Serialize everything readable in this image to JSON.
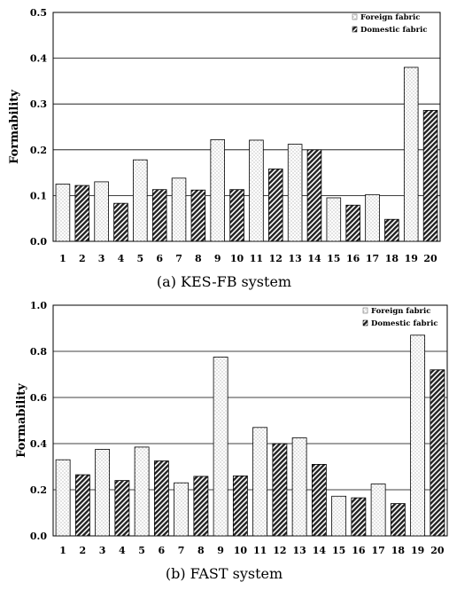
{
  "chart_data": [
    {
      "type": "bar",
      "caption": "(a) KES-FB system",
      "ylabel": "Formability",
      "ylim": [
        0,
        0.5
      ],
      "yticks": [
        "0.0",
        "0.1",
        "0.2",
        "0.3",
        "0.4",
        "0.5"
      ],
      "categories": [
        "1",
        "2",
        "3",
        "4",
        "5",
        "6",
        "7",
        "8",
        "9",
        "10",
        "11",
        "12",
        "13",
        "14",
        "15",
        "16",
        "17",
        "18",
        "19",
        "20"
      ],
      "series": [
        {
          "name": "Foreign fabric",
          "pattern": "dots",
          "values": [
            0.125,
            null,
            0.13,
            null,
            0.178,
            null,
            0.138,
            null,
            0.222,
            null,
            0.221,
            null,
            0.212,
            null,
            0.095,
            null,
            0.102,
            null,
            0.38,
            null
          ]
        },
        {
          "name": "Domestic fabric",
          "pattern": "hatch",
          "values": [
            null,
            0.122,
            null,
            0.083,
            null,
            0.113,
            null,
            0.112,
            null,
            0.113,
            null,
            0.158,
            null,
            0.2,
            null,
            0.079,
            null,
            0.048,
            null,
            0.286
          ]
        }
      ],
      "legend": "top-right",
      "grid": true
    },
    {
      "type": "bar",
      "caption": "(b) FAST system",
      "ylabel": "Formability",
      "ylim": [
        0,
        1.0
      ],
      "yticks": [
        "0.0",
        "0.2",
        "0.4",
        "0.6",
        "0.8",
        "1.0"
      ],
      "categories": [
        "1",
        "2",
        "3",
        "4",
        "5",
        "6",
        "7",
        "8",
        "9",
        "10",
        "11",
        "12",
        "13",
        "14",
        "15",
        "16",
        "17",
        "18",
        "19",
        "20"
      ],
      "series": [
        {
          "name": "Foreign fabric",
          "pattern": "dots",
          "values": [
            0.33,
            null,
            0.375,
            null,
            0.385,
            null,
            0.23,
            null,
            0.775,
            null,
            0.47,
            null,
            0.425,
            null,
            0.172,
            null,
            0.225,
            null,
            0.87,
            null
          ]
        },
        {
          "name": "Domestic fabric",
          "pattern": "hatch",
          "values": [
            null,
            0.265,
            null,
            0.24,
            null,
            0.325,
            null,
            0.258,
            null,
            0.26,
            null,
            0.4,
            null,
            0.31,
            null,
            0.165,
            null,
            0.14,
            null,
            0.72
          ]
        }
      ],
      "legend": "top-right",
      "grid": true
    }
  ]
}
